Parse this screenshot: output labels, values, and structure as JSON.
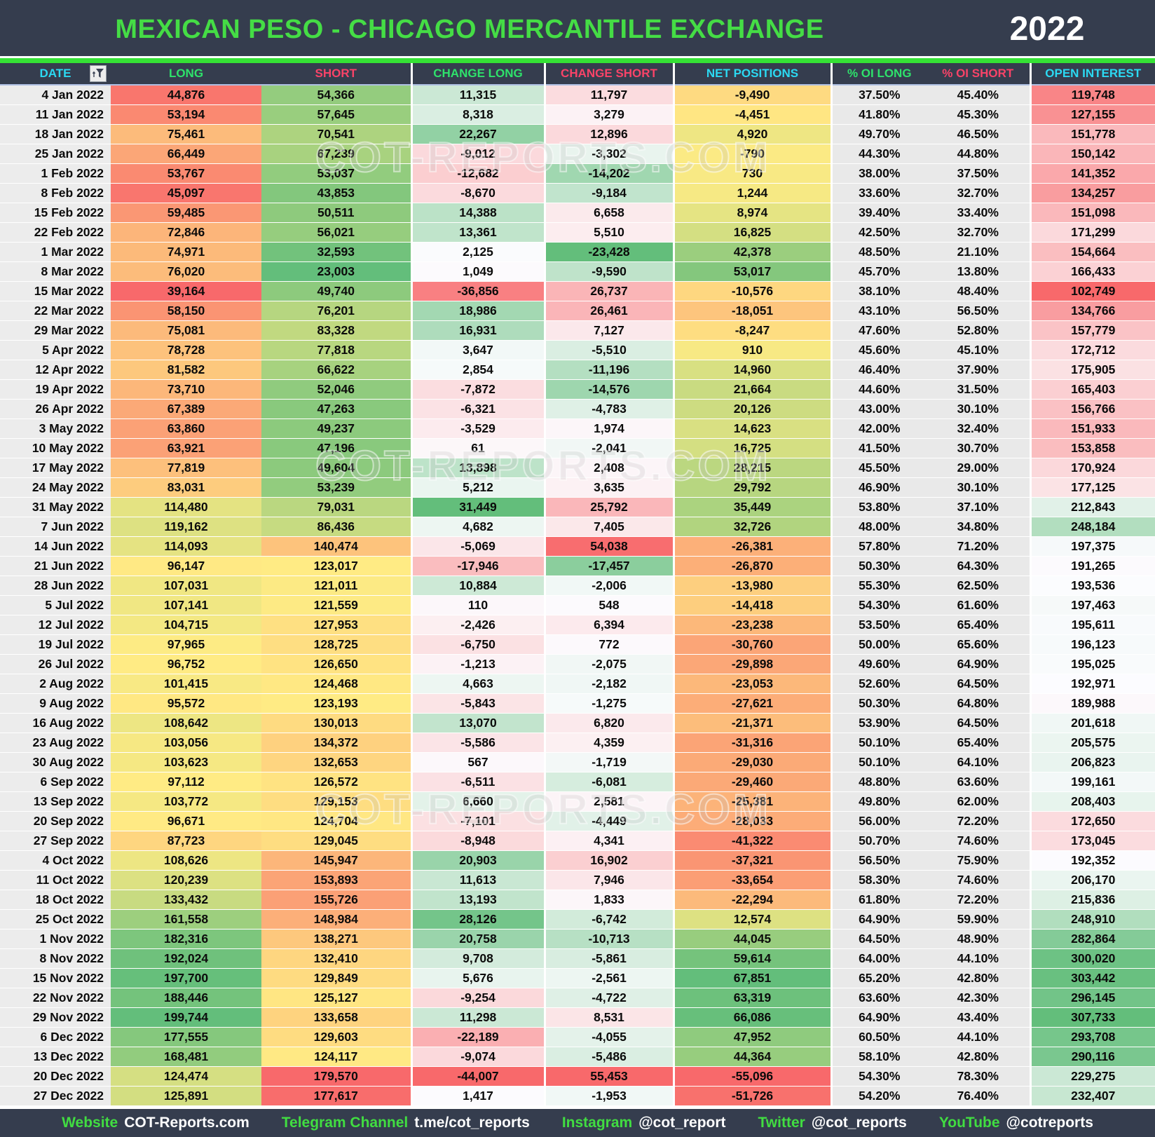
{
  "title_bar": {
    "title": "MEXICAN PESO - CHICAGO MERCANTILE EXCHANGE",
    "year": "2022"
  },
  "watermark_text": "COT-REPORTS.COM",
  "colors": {
    "bar_bg": "#353D4E",
    "title_green": "#45DD45",
    "accent_line_green": "#35E235",
    "header_cyan": "#2BD9F2",
    "header_green": "#2EE26B",
    "header_pink": "#F94368",
    "date_col_bg": "#ECECEC",
    "pct_col_bg": "#E9E9E9",
    "footer_label_green": "#41DD41",
    "scale": {
      "red": "#F8696B",
      "yellow": "#FFEB84",
      "green": "#63BE7B",
      "white": "#FCFCFF"
    }
  },
  "table": {
    "columns": [
      {
        "key": "date",
        "label": "DATE",
        "header_color": "cyan",
        "scale": null,
        "gap": false,
        "has_filter_icon": true
      },
      {
        "key": "long",
        "label": "LONG",
        "header_color": "green",
        "scale": "ryg",
        "gap": false
      },
      {
        "key": "short",
        "label": "SHORT",
        "header_color": "pink",
        "scale": "gyr",
        "gap": false
      },
      {
        "key": "change_long",
        "label": "CHANGE LONG",
        "header_color": "green",
        "scale": "rwg",
        "gap": true
      },
      {
        "key": "change_short",
        "label": "CHANGE SHORT",
        "header_color": "pink",
        "scale": "gwr",
        "gap": true
      },
      {
        "key": "net",
        "label": "NET POSITIONS",
        "header_color": "cyan",
        "scale": "ryg",
        "gap": true
      },
      {
        "key": "oi_long",
        "label": "% OI LONG",
        "header_color": "green",
        "scale": null,
        "gap": true
      },
      {
        "key": "oi_short",
        "label": "% OI SHORT",
        "header_color": "pink",
        "scale": null,
        "gap": false
      },
      {
        "key": "open_interest",
        "label": "OPEN INTEREST",
        "header_color": "cyan",
        "scale": "rwg",
        "gap": true
      }
    ],
    "rows": [
      [
        "4 Jan 2022",
        44876,
        54366,
        11315,
        11797,
        -9490,
        "37.50%",
        "45.40%",
        119748
      ],
      [
        "11 Jan 2022",
        53194,
        57645,
        8318,
        3279,
        -4451,
        "41.80%",
        "45.30%",
        127155
      ],
      [
        "18 Jan 2022",
        75461,
        70541,
        22267,
        12896,
        4920,
        "49.70%",
        "46.50%",
        151778
      ],
      [
        "25 Jan 2022",
        66449,
        67239,
        -9012,
        -3302,
        -790,
        "44.30%",
        "44.80%",
        150142
      ],
      [
        "1 Feb 2022",
        53767,
        53037,
        -12682,
        -14202,
        730,
        "38.00%",
        "37.50%",
        141352
      ],
      [
        "8 Feb 2022",
        45097,
        43853,
        -8670,
        -9184,
        1244,
        "33.60%",
        "32.70%",
        134257
      ],
      [
        "15 Feb 2022",
        59485,
        50511,
        14388,
        6658,
        8974,
        "39.40%",
        "33.40%",
        151098
      ],
      [
        "22 Feb 2022",
        72846,
        56021,
        13361,
        5510,
        16825,
        "42.50%",
        "32.70%",
        171299
      ],
      [
        "1 Mar 2022",
        74971,
        32593,
        2125,
        -23428,
        42378,
        "48.50%",
        "21.10%",
        154664
      ],
      [
        "8 Mar 2022",
        76020,
        23003,
        1049,
        -9590,
        53017,
        "45.70%",
        "13.80%",
        166433
      ],
      [
        "15 Mar 2022",
        39164,
        49740,
        -36856,
        26737,
        -10576,
        "38.10%",
        "48.40%",
        102749
      ],
      [
        "22 Mar 2022",
        58150,
        76201,
        18986,
        26461,
        -18051,
        "43.10%",
        "56.50%",
        134766
      ],
      [
        "29 Mar 2022",
        75081,
        83328,
        16931,
        7127,
        -8247,
        "47.60%",
        "52.80%",
        157779
      ],
      [
        "5 Apr 2022",
        78728,
        77818,
        3647,
        -5510,
        910,
        "45.60%",
        "45.10%",
        172712
      ],
      [
        "12 Apr 2022",
        81582,
        66622,
        2854,
        -11196,
        14960,
        "46.40%",
        "37.90%",
        175905
      ],
      [
        "19 Apr 2022",
        73710,
        52046,
        -7872,
        -14576,
        21664,
        "44.60%",
        "31.50%",
        165403
      ],
      [
        "26 Apr 2022",
        67389,
        47263,
        -6321,
        -4783,
        20126,
        "43.00%",
        "30.10%",
        156766
      ],
      [
        "3 May 2022",
        63860,
        49237,
        -3529,
        1974,
        14623,
        "42.00%",
        "32.40%",
        151933
      ],
      [
        "10 May 2022",
        63921,
        47196,
        61,
        -2041,
        16725,
        "41.50%",
        "30.70%",
        153858
      ],
      [
        "17 May 2022",
        77819,
        49604,
        13898,
        2408,
        28215,
        "45.50%",
        "29.00%",
        170924
      ],
      [
        "24 May 2022",
        83031,
        53239,
        5212,
        3635,
        29792,
        "46.90%",
        "30.10%",
        177125
      ],
      [
        "31 May 2022",
        114480,
        79031,
        31449,
        25792,
        35449,
        "53.80%",
        "37.10%",
        212843
      ],
      [
        "7 Jun 2022",
        119162,
        86436,
        4682,
        7405,
        32726,
        "48.00%",
        "34.80%",
        248184
      ],
      [
        "14 Jun 2022",
        114093,
        140474,
        -5069,
        54038,
        -26381,
        "57.80%",
        "71.20%",
        197375
      ],
      [
        "21 Jun 2022",
        96147,
        123017,
        -17946,
        -17457,
        -26870,
        "50.30%",
        "64.30%",
        191265
      ],
      [
        "28 Jun 2022",
        107031,
        121011,
        10884,
        -2006,
        -13980,
        "55.30%",
        "62.50%",
        193536
      ],
      [
        "5 Jul 2022",
        107141,
        121559,
        110,
        548,
        -14418,
        "54.30%",
        "61.60%",
        197463
      ],
      [
        "12 Jul 2022",
        104715,
        127953,
        -2426,
        6394,
        -23238,
        "53.50%",
        "65.40%",
        195611
      ],
      [
        "19 Jul 2022",
        97965,
        128725,
        -6750,
        772,
        -30760,
        "50.00%",
        "65.60%",
        196123
      ],
      [
        "26 Jul 2022",
        96752,
        126650,
        -1213,
        -2075,
        -29898,
        "49.60%",
        "64.90%",
        195025
      ],
      [
        "2 Aug 2022",
        101415,
        124468,
        4663,
        -2182,
        -23053,
        "52.60%",
        "64.50%",
        192971
      ],
      [
        "9 Aug 2022",
        95572,
        123193,
        -5843,
        -1275,
        -27621,
        "50.30%",
        "64.80%",
        189988
      ],
      [
        "16 Aug 2022",
        108642,
        130013,
        13070,
        6820,
        -21371,
        "53.90%",
        "64.50%",
        201618
      ],
      [
        "23 Aug 2022",
        103056,
        134372,
        -5586,
        4359,
        -31316,
        "50.10%",
        "65.40%",
        205575
      ],
      [
        "30 Aug 2022",
        103623,
        132653,
        567,
        -1719,
        -29030,
        "50.10%",
        "64.10%",
        206823
      ],
      [
        "6 Sep 2022",
        97112,
        126572,
        -6511,
        -6081,
        -29460,
        "48.80%",
        "63.60%",
        199161
      ],
      [
        "13 Sep 2022",
        103772,
        129153,
        6660,
        2581,
        -25381,
        "49.80%",
        "62.00%",
        208403
      ],
      [
        "20 Sep 2022",
        96671,
        124704,
        -7101,
        -4449,
        -28033,
        "56.00%",
        "72.20%",
        172650
      ],
      [
        "27 Sep 2022",
        87723,
        129045,
        -8948,
        4341,
        -41322,
        "50.70%",
        "74.60%",
        173045
      ],
      [
        "4 Oct 2022",
        108626,
        145947,
        20903,
        16902,
        -37321,
        "56.50%",
        "75.90%",
        192352
      ],
      [
        "11 Oct 2022",
        120239,
        153893,
        11613,
        7946,
        -33654,
        "58.30%",
        "74.60%",
        206170
      ],
      [
        "18 Oct 2022",
        133432,
        155726,
        13193,
        1833,
        -22294,
        "61.80%",
        "72.20%",
        215836
      ],
      [
        "25 Oct 2022",
        161558,
        148984,
        28126,
        -6742,
        12574,
        "64.90%",
        "59.90%",
        248910
      ],
      [
        "1 Nov 2022",
        182316,
        138271,
        20758,
        -10713,
        44045,
        "64.50%",
        "48.90%",
        282864
      ],
      [
        "8 Nov 2022",
        192024,
        132410,
        9708,
        -5861,
        59614,
        "64.00%",
        "44.10%",
        300020
      ],
      [
        "15 Nov 2022",
        197700,
        129849,
        5676,
        -2561,
        67851,
        "65.20%",
        "42.80%",
        303442
      ],
      [
        "22 Nov 2022",
        188446,
        125127,
        -9254,
        -4722,
        63319,
        "63.60%",
        "42.30%",
        296145
      ],
      [
        "29 Nov 2022",
        199744,
        133658,
        11298,
        8531,
        66086,
        "64.90%",
        "43.40%",
        307733
      ],
      [
        "6 Dec 2022",
        177555,
        129603,
        -22189,
        -4055,
        47952,
        "60.50%",
        "44.10%",
        293708
      ],
      [
        "13 Dec 2022",
        168481,
        124117,
        -9074,
        -5486,
        44364,
        "58.10%",
        "42.80%",
        290116
      ],
      [
        "20 Dec 2022",
        124474,
        179570,
        -44007,
        55453,
        -55096,
        "54.30%",
        "78.30%",
        229275
      ],
      [
        "27 Dec 2022",
        125891,
        177617,
        1417,
        -1953,
        -51726,
        "54.20%",
        "76.40%",
        232407
      ]
    ]
  },
  "footer": {
    "items": [
      {
        "label": "Website",
        "value": "COT-Reports.com"
      },
      {
        "label": "Telegram Channel",
        "value": "t.me/cot_reports"
      },
      {
        "label": "Instagram",
        "value": "@cot_report"
      },
      {
        "label": "Twitter",
        "value": "@cot_reports"
      },
      {
        "label": "YouTube",
        "value": "@cotreports"
      }
    ]
  }
}
